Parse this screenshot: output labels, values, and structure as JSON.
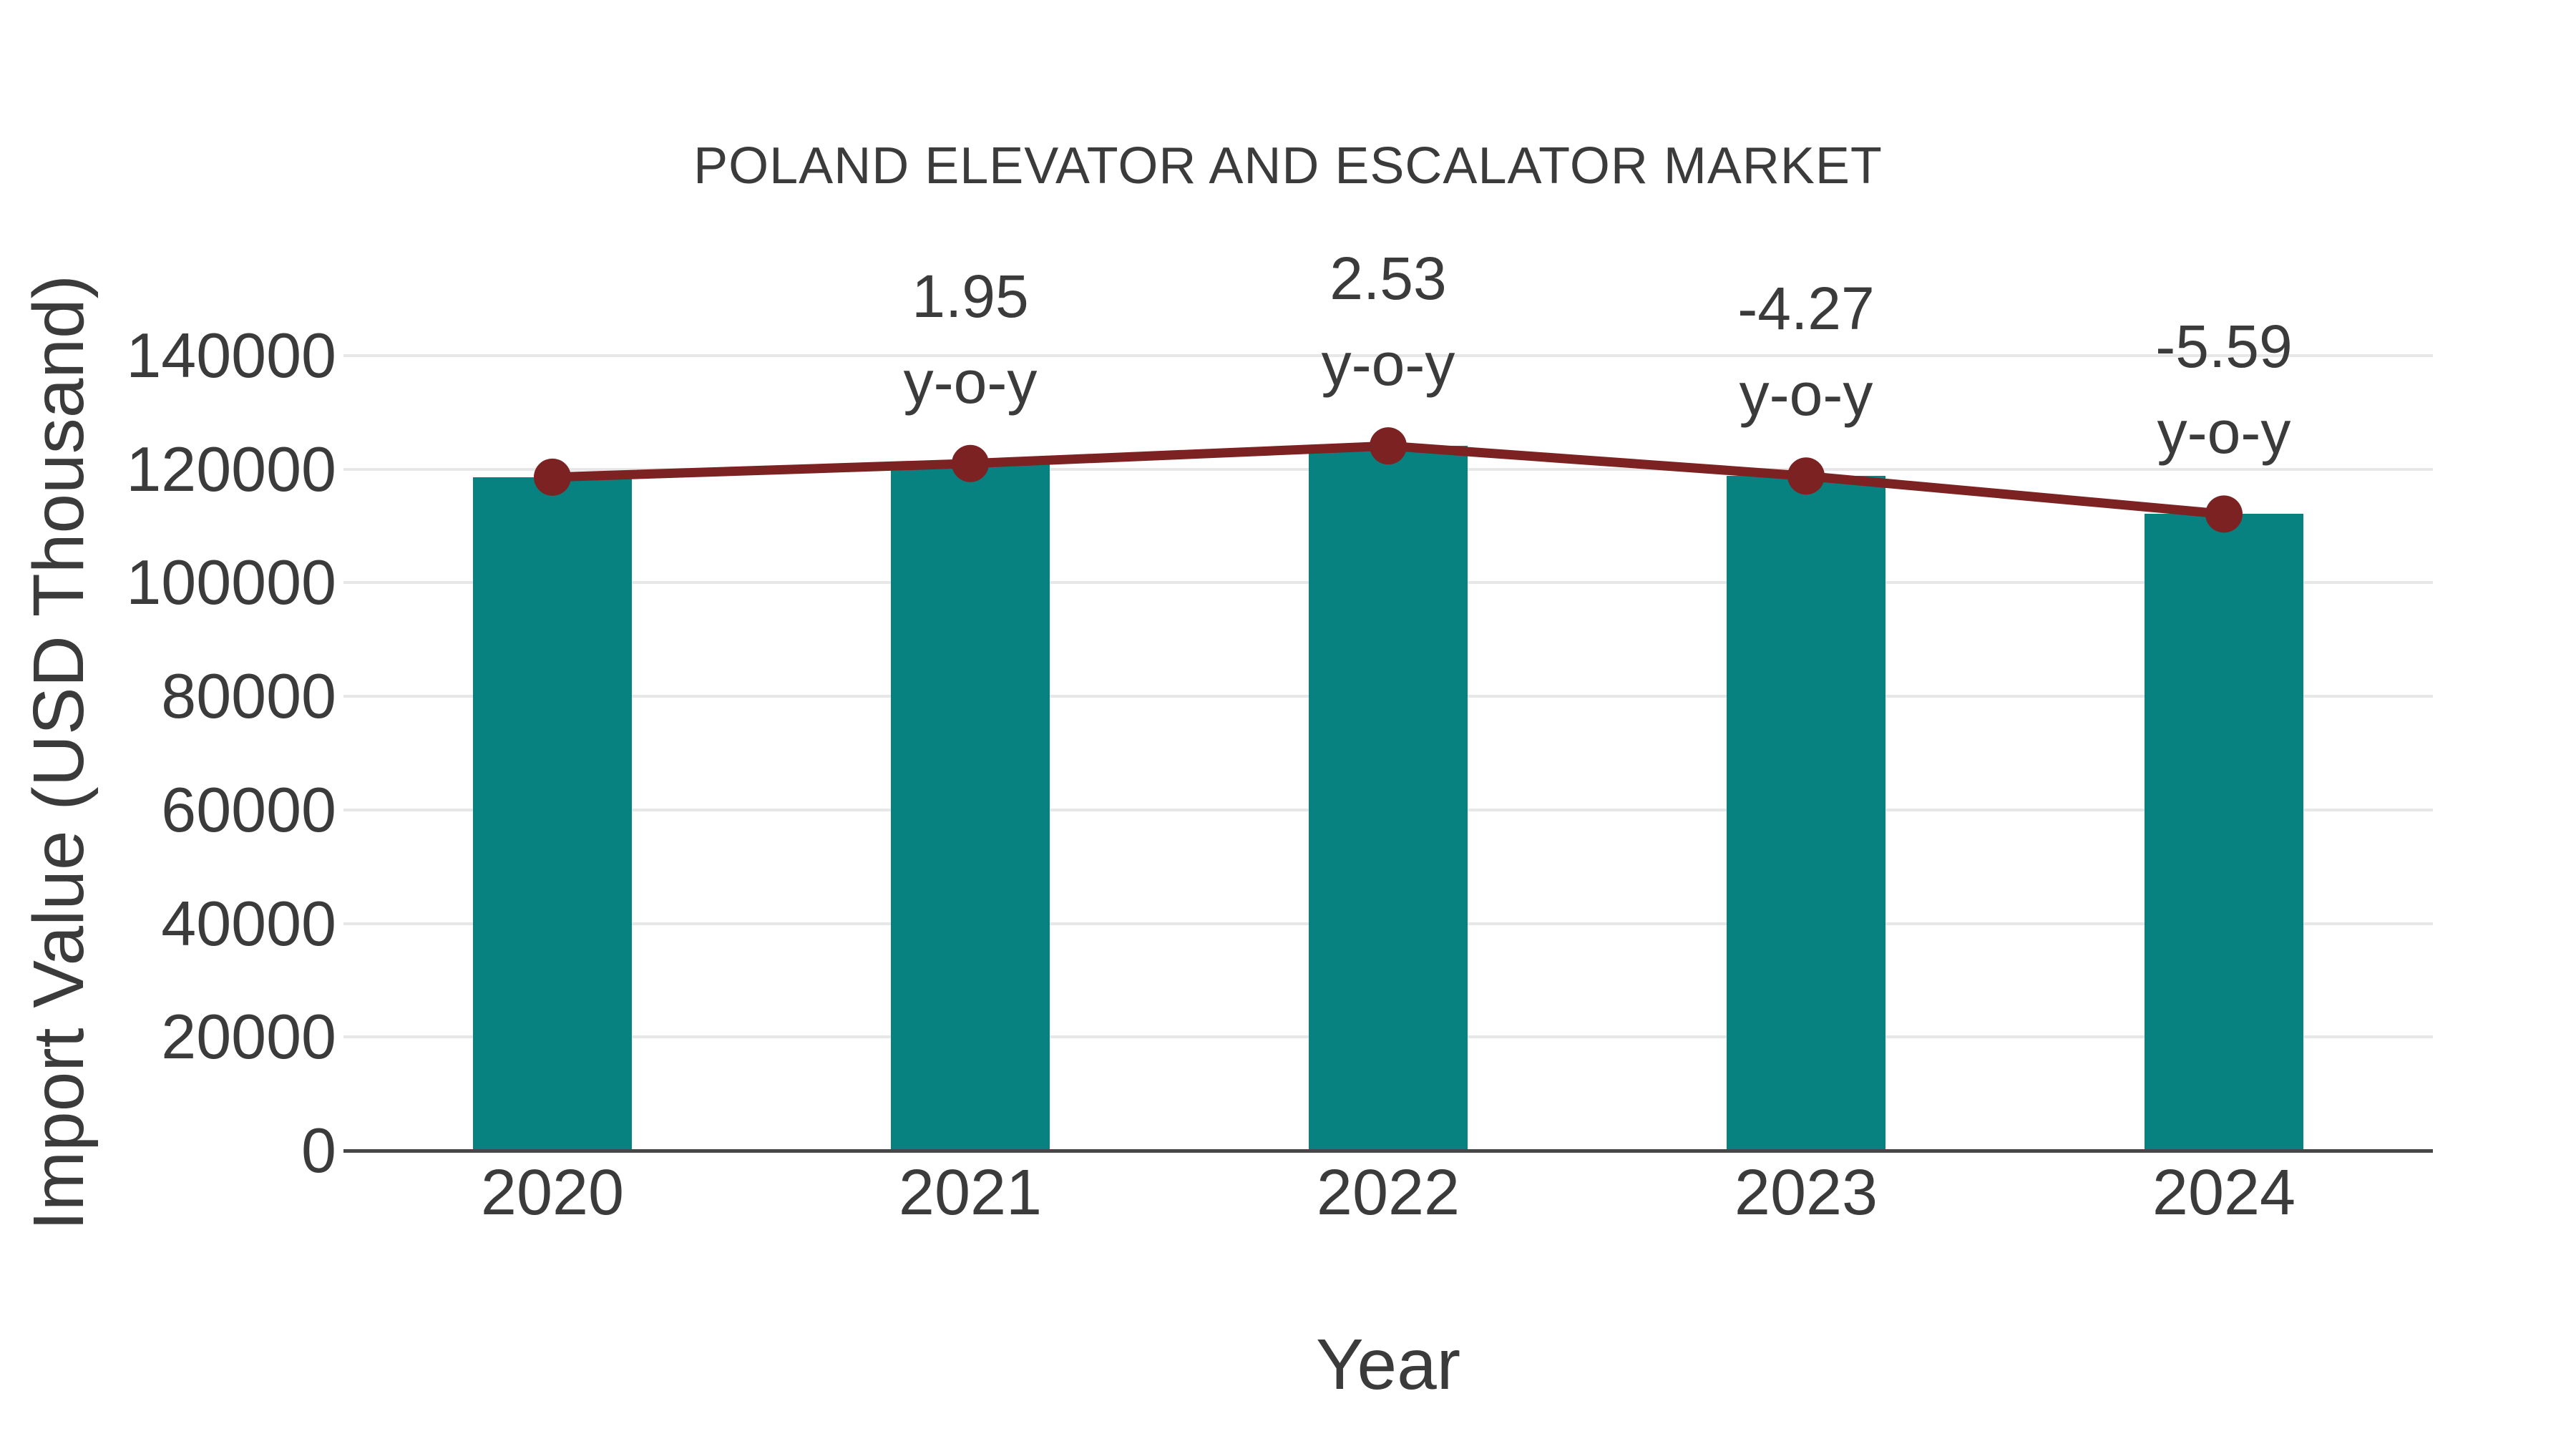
{
  "chart_data": {
    "type": "bar",
    "title": "POLAND ELEVATOR AND ESCALATOR MARKET",
    "xlabel": "Year",
    "ylabel": "Import Value (USD Thousand)",
    "categories": [
      "2020",
      "2021",
      "2022",
      "2023",
      "2024"
    ],
    "series": [
      {
        "name": "Import Value bars",
        "type": "bar",
        "color": "#088181",
        "values": [
          118600,
          121000,
          124100,
          118800,
          112100
        ]
      },
      {
        "name": "Import Value trend line",
        "type": "line",
        "color": "#7c2222",
        "values": [
          118600,
          121000,
          124100,
          118800,
          112100
        ]
      }
    ],
    "annotations": [
      {
        "category": "2021",
        "lines": [
          "1.95",
          "y-o-y"
        ]
      },
      {
        "category": "2022",
        "lines": [
          "2.53",
          "y-o-y"
        ]
      },
      {
        "category": "2023",
        "lines": [
          "-4.27",
          "y-o-y"
        ]
      },
      {
        "category": "2024",
        "lines": [
          "-5.59",
          "y-o-y"
        ]
      }
    ],
    "ylim": [
      0,
      140000
    ],
    "yticks": [
      0,
      20000,
      40000,
      60000,
      80000,
      100000,
      120000,
      140000
    ],
    "ytick_labels": [
      "0",
      "20000",
      "40000",
      "60000",
      "80000",
      "100000",
      "120000",
      "140000"
    ],
    "grid": true,
    "legend_visible": false
  },
  "style": {
    "bar_color": "#088181",
    "line_color": "#7c2222",
    "marker_color": "#7c2222",
    "text_color": "#3b3b3b",
    "grid_color": "#e7e7e7",
    "axis_line_color": "#474747",
    "background_color": "#ffffff"
  }
}
